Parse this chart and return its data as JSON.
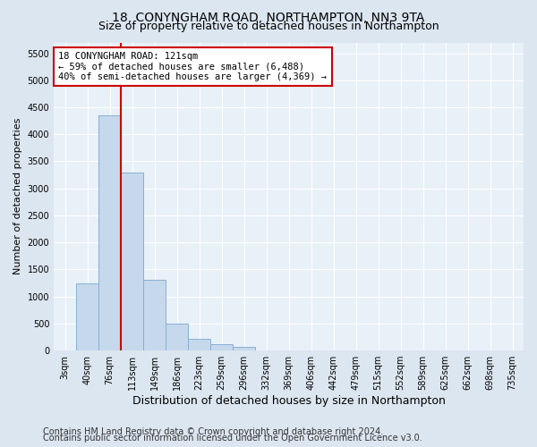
{
  "title_line1": "18, CONYNGHAM ROAD, NORTHAMPTON, NN3 9TA",
  "title_line2": "Size of property relative to detached houses in Northampton",
  "xlabel": "Distribution of detached houses by size in Northampton",
  "ylabel": "Number of detached properties",
  "footer_line1": "Contains HM Land Registry data © Crown copyright and database right 2024.",
  "footer_line2": "Contains public sector information licensed under the Open Government Licence v3.0.",
  "categories": [
    "3sqm",
    "40sqm",
    "76sqm",
    "113sqm",
    "149sqm",
    "186sqm",
    "223sqm",
    "259sqm",
    "296sqm",
    "332sqm",
    "369sqm",
    "406sqm",
    "442sqm",
    "479sqm",
    "515sqm",
    "552sqm",
    "589sqm",
    "625sqm",
    "662sqm",
    "698sqm",
    "735sqm"
  ],
  "values": [
    0,
    1250,
    4350,
    3300,
    1300,
    500,
    220,
    110,
    70,
    0,
    0,
    0,
    0,
    0,
    0,
    0,
    0,
    0,
    0,
    0,
    0
  ],
  "bar_color": "#c5d8ec",
  "bar_edge_color": "#8ab0d0",
  "vline_color": "#cc0000",
  "vline_x": 2.5,
  "annotation_text": "18 CONYNGHAM ROAD: 121sqm\n← 59% of detached houses are smaller (6,488)\n40% of semi-detached houses are larger (4,369) →",
  "annotation_box_color": "white",
  "annotation_box_edge_color": "#cc0000",
  "ylim": [
    0,
    5700
  ],
  "yticks": [
    0,
    500,
    1000,
    1500,
    2000,
    2500,
    3000,
    3500,
    4000,
    4500,
    5000,
    5500
  ],
  "bg_color": "#dce6f0",
  "plot_bg_color": "#e8f0f8",
  "title1_fontsize": 10,
  "title2_fontsize": 9,
  "xlabel_fontsize": 9,
  "ylabel_fontsize": 8,
  "tick_fontsize": 7,
  "footer_fontsize": 7,
  "annot_fontsize": 7.5
}
